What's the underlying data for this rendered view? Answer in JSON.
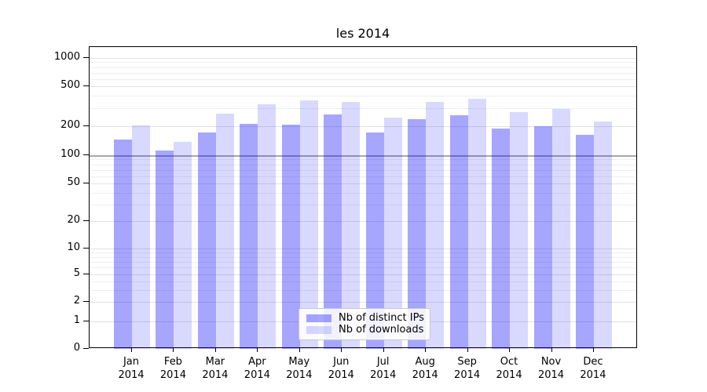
{
  "chart_data": {
    "type": "bar",
    "title": "les 2014",
    "categories": [
      "Jan",
      "Feb",
      "Mar",
      "Apr",
      "May",
      "Jun",
      "Jul",
      "Aug",
      "Sep",
      "Oct",
      "Nov",
      "Dec"
    ],
    "year": "2014",
    "series": [
      {
        "name": "Nb of distinct IPs",
        "color": "rgba(0,0,255,0.35)",
        "values": [
          145,
          112,
          172,
          210,
          206,
          262,
          172,
          235,
          255,
          190,
          201,
          163
        ]
      },
      {
        "name": "Nb of downloads",
        "color": "rgba(0,0,255,0.15)",
        "values": [
          203,
          137,
          267,
          330,
          362,
          349,
          245,
          347,
          375,
          276,
          296,
          222
        ]
      }
    ],
    "y_scale": "symlog",
    "y_ticks": [
      0,
      1,
      2,
      5,
      10,
      20,
      50,
      100,
      200,
      500,
      1000
    ],
    "y_minor_ticks": [
      3,
      4,
      6,
      7,
      8,
      9,
      30,
      40,
      60,
      70,
      80,
      90,
      300,
      400,
      600,
      700,
      800,
      900
    ],
    "ylim": [
      0,
      1400
    ],
    "grid": true,
    "reference_line": {
      "value": 100,
      "color": "#a9a9a9"
    },
    "legend_position": "lower center",
    "colors": {
      "bar_dark": "rgba(0,0,255,0.35)",
      "bar_light": "rgba(0,0,255,0.15)",
      "grid_major": "#e2e2e2",
      "grid_minor": "#efefef",
      "axis": "#000000",
      "background": "#ffffff"
    }
  }
}
